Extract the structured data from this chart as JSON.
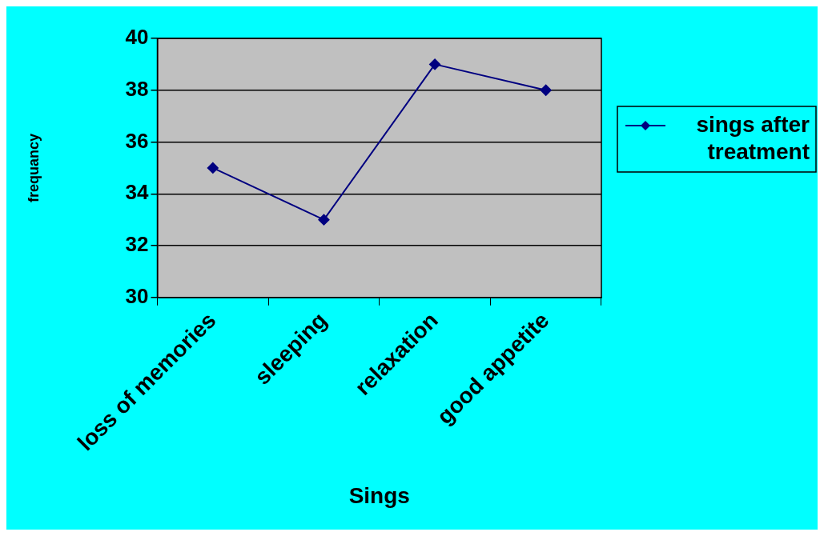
{
  "chart_data": {
    "type": "line",
    "xlabel": "Sings",
    "ylabel": "frequancy",
    "categories": [
      "loss of memories",
      "sleeping",
      "relaxation",
      "good appetite"
    ],
    "series": [
      {
        "name": "sings after treatment",
        "color": "#000080",
        "values": [
          35,
          33,
          39,
          38
        ]
      }
    ],
    "ylim": [
      30,
      40
    ],
    "yticks": [
      30,
      32,
      34,
      36,
      38,
      40
    ],
    "grid": "y",
    "legend": "right",
    "marker": "diamond",
    "line_style": "solid"
  }
}
